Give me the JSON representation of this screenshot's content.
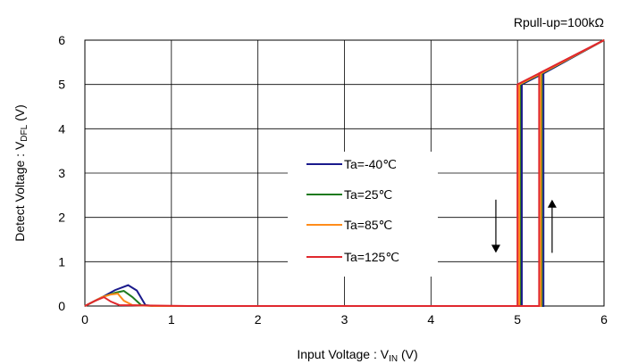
{
  "chart_data": {
    "type": "line",
    "annotation": "Rpull-up=100kΩ",
    "xlabel": {
      "main": "Input Voltage : V",
      "sub": "IN",
      "unit": " (V)"
    },
    "ylabel": {
      "main": "Detect Voltage : V",
      "sub": "DFL",
      "unit": " (V)"
    },
    "xlim": [
      0,
      6
    ],
    "ylim": [
      0,
      6
    ],
    "xticks": [
      "0",
      "1",
      "2",
      "3",
      "4",
      "5",
      "6"
    ],
    "yticks": [
      "0",
      "1",
      "2",
      "3",
      "4",
      "5",
      "6"
    ],
    "grid": true,
    "legend_position": "center",
    "series": [
      {
        "name": "Ta=-40℃",
        "color": "#1a1a8c",
        "points": [
          [
            0,
            0
          ],
          [
            0.2,
            0.2
          ],
          [
            0.35,
            0.36
          ],
          [
            0.5,
            0.47
          ],
          [
            0.6,
            0.35
          ],
          [
            0.7,
            0.02
          ],
          [
            0.8,
            0
          ],
          [
            5.05,
            0
          ],
          [
            5.05,
            5.0
          ],
          [
            5.3,
            5.25
          ],
          [
            6,
            6
          ]
        ],
        "reverse_points": [
          [
            6,
            6
          ],
          [
            5.3,
            5.25
          ],
          [
            5.3,
            0
          ],
          [
            5.05,
            0
          ]
        ]
      },
      {
        "name": "Ta=25℃",
        "color": "#1f7a1f",
        "points": [
          [
            0,
            0
          ],
          [
            0.2,
            0.2
          ],
          [
            0.35,
            0.3
          ],
          [
            0.45,
            0.34
          ],
          [
            0.55,
            0.2
          ],
          [
            0.65,
            0.02
          ],
          [
            0.8,
            0
          ],
          [
            5.03,
            0
          ],
          [
            5.03,
            5.0
          ],
          [
            5.28,
            5.25
          ],
          [
            6,
            6
          ]
        ],
        "reverse_points": [
          [
            6,
            6
          ],
          [
            5.28,
            5.25
          ],
          [
            5.28,
            0
          ],
          [
            5.03,
            0
          ]
        ]
      },
      {
        "name": "Ta=85℃",
        "color": "#ff8c1a",
        "points": [
          [
            0,
            0
          ],
          [
            0.2,
            0.2
          ],
          [
            0.3,
            0.26
          ],
          [
            0.38,
            0.28
          ],
          [
            0.45,
            0.12
          ],
          [
            0.55,
            0.02
          ],
          [
            0.8,
            0
          ],
          [
            5.02,
            0
          ],
          [
            5.02,
            5.0
          ],
          [
            5.27,
            5.25
          ],
          [
            6,
            6
          ]
        ],
        "reverse_points": [
          [
            6,
            6
          ],
          [
            5.27,
            5.25
          ],
          [
            5.27,
            0
          ],
          [
            5.02,
            0
          ]
        ]
      },
      {
        "name": "Ta=125℃",
        "color": "#e0282e",
        "points": [
          [
            0,
            0
          ],
          [
            0.12,
            0.12
          ],
          [
            0.22,
            0.2
          ],
          [
            0.3,
            0.1
          ],
          [
            0.4,
            0.02
          ],
          [
            1.2,
            0
          ],
          [
            5.0,
            0
          ],
          [
            5.0,
            5.0
          ],
          [
            5.25,
            5.25
          ],
          [
            6,
            6
          ]
        ],
        "reverse_points": [
          [
            6,
            6
          ],
          [
            5.25,
            5.25
          ],
          [
            5.25,
            0
          ],
          [
            5.0,
            0
          ]
        ]
      }
    ],
    "arrows": [
      {
        "direction": "down",
        "x": 4.75,
        "y_from": 2.4,
        "y_to": 1.2
      },
      {
        "direction": "up",
        "x": 5.4,
        "y_from": 1.2,
        "y_to": 2.4
      }
    ]
  }
}
